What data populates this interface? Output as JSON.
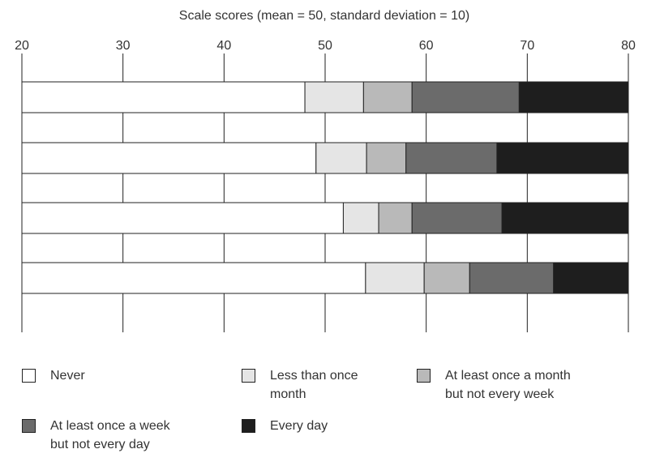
{
  "chart_data": {
    "type": "bar",
    "orientation": "horizontal",
    "stacked": true,
    "xlabel": "Scale scores (mean = 50, standard deviation = 10)",
    "xlim": [
      20,
      80
    ],
    "xticks": [
      20,
      30,
      40,
      50,
      60,
      70,
      80
    ],
    "axis_position": "top",
    "grid": true,
    "categories": [
      "",
      "",
      "",
      ""
    ],
    "series": [
      {
        "name": "Never",
        "color": "#ffffff",
        "boundaries": [
          48.0,
          49.1,
          51.8,
          54.0
        ]
      },
      {
        "name": "Less than once month",
        "color": "#e5e5e5",
        "boundaries": [
          53.8,
          54.1,
          55.3,
          59.8
        ]
      },
      {
        "name": "At least once a month but not every week",
        "color": "#b9b9b9",
        "boundaries": [
          58.6,
          58.0,
          58.6,
          64.3
        ]
      },
      {
        "name": "At least once a week but not every day",
        "color": "#6b6b6b",
        "boundaries": [
          69.2,
          67.0,
          67.5,
          72.6
        ]
      },
      {
        "name": "Every day",
        "color": "#1e1e1e",
        "boundaries": [
          80,
          80,
          80,
          80
        ]
      }
    ],
    "legend_position": "bottom"
  },
  "legend": {
    "items": [
      {
        "label_lines": [
          "Never"
        ]
      },
      {
        "label_lines": [
          "Less than once",
          "month"
        ]
      },
      {
        "label_lines": [
          "At least once a month",
          "but not every week"
        ]
      },
      {
        "label_lines": [
          "At least once a week",
          "but not every day"
        ]
      },
      {
        "label_lines": [
          "Every day"
        ]
      }
    ]
  }
}
